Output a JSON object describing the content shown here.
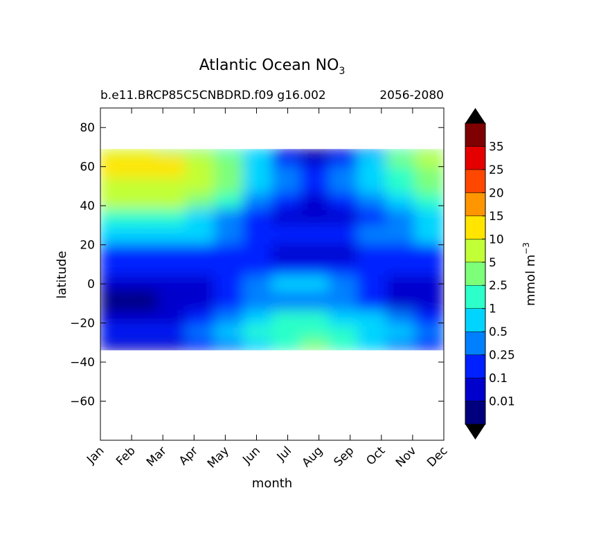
{
  "chart_data": {
    "type": "heatmap",
    "title": "Atlantic Ocean NO",
    "title_subscript": "3",
    "subtitle_left": "b.e11.BRCP85C5CNBDRD.f09 g16.002",
    "subtitle_right": "2056-2080",
    "xlabel": "month",
    "ylabel": "latitude",
    "x_categories": [
      "Jan",
      "Feb",
      "Mar",
      "Apr",
      "May",
      "Jun",
      "Jul",
      "Aug",
      "Sep",
      "Oct",
      "Nov",
      "Dec"
    ],
    "ylim": [
      -80,
      90
    ],
    "y_ticks": [
      80,
      60,
      40,
      20,
      0,
      -20,
      -40,
      -60
    ],
    "y_tick_labels": [
      "80",
      "60",
      "40",
      "20",
      "0",
      "−20",
      "−40",
      "−60"
    ],
    "data_lat_range": [
      -34,
      69
    ],
    "colorbar": {
      "label": "mmol m",
      "label_superscript": "−3",
      "extend": "both",
      "levels": [
        "0.01",
        "0.1",
        "0.25",
        "0.5",
        "1",
        "2.5",
        "5",
        "10",
        "15",
        "20",
        "25",
        "35"
      ],
      "colors": [
        "#00007f",
        "#0000cd",
        "#0020ff",
        "#0080ff",
        "#00d4ff",
        "#2cffc9",
        "#7dff7a",
        "#c1ff36",
        "#ffe500",
        "#ff9600",
        "#ff4700",
        "#e50000",
        "#7f0000"
      ],
      "under_color": "#000000",
      "over_color": "#000000"
    },
    "grid": false,
    "field_description_rows": [
      {
        "lat_from": 69,
        "lat_to": 66,
        "class_by_month": [
          7,
          7,
          6,
          6,
          5,
          4,
          1,
          0,
          1,
          3,
          5,
          6
        ]
      },
      {
        "lat_from": 66,
        "lat_to": 60,
        "class_by_month": [
          8,
          8,
          8,
          7,
          6,
          4,
          2,
          1,
          2,
          4,
          6,
          7
        ]
      },
      {
        "lat_from": 60,
        "lat_to": 54,
        "class_by_month": [
          8,
          8,
          8,
          7,
          6,
          4,
          3,
          2,
          3,
          4,
          5,
          6
        ]
      },
      {
        "lat_from": 54,
        "lat_to": 46,
        "class_by_month": [
          7,
          7,
          7,
          7,
          6,
          4,
          3,
          2,
          3,
          4,
          5,
          6
        ]
      },
      {
        "lat_from": 46,
        "lat_to": 38,
        "class_by_month": [
          7,
          7,
          7,
          6,
          5,
          3,
          2,
          1,
          2,
          3,
          4,
          5
        ]
      },
      {
        "lat_from": 38,
        "lat_to": 30,
        "class_by_month": [
          5,
          5,
          5,
          4,
          3,
          2,
          1,
          1,
          1,
          2,
          3,
          4
        ]
      },
      {
        "lat_from": 30,
        "lat_to": 20,
        "class_by_month": [
          4,
          4,
          4,
          4,
          3,
          2,
          2,
          2,
          2,
          3,
          3,
          4
        ]
      },
      {
        "lat_from": 20,
        "lat_to": 10,
        "class_by_month": [
          2,
          2,
          2,
          2,
          2,
          2,
          1,
          1,
          1,
          2,
          2,
          2
        ]
      },
      {
        "lat_from": 10,
        "lat_to": 4,
        "class_by_month": [
          2,
          2,
          2,
          2,
          2,
          2,
          2,
          2,
          2,
          2,
          2,
          2
        ]
      },
      {
        "lat_from": 4,
        "lat_to": -4,
        "class_by_month": [
          1,
          1,
          1,
          1,
          2,
          3,
          4,
          4,
          3,
          2,
          1,
          1
        ]
      },
      {
        "lat_from": -4,
        "lat_to": -14,
        "class_by_month": [
          0,
          0,
          1,
          1,
          2,
          3,
          3,
          3,
          3,
          2,
          1,
          1
        ]
      },
      {
        "lat_from": -14,
        "lat_to": -22,
        "class_by_month": [
          1,
          1,
          1,
          2,
          3,
          4,
          5,
          5,
          4,
          4,
          3,
          2
        ]
      },
      {
        "lat_from": -22,
        "lat_to": -28,
        "class_by_month": [
          2,
          2,
          2,
          3,
          4,
          5,
          5,
          5,
          5,
          4,
          4,
          3
        ]
      },
      {
        "lat_from": -28,
        "lat_to": -34,
        "class_by_month": [
          1,
          1,
          1,
          2,
          3,
          4,
          5,
          6,
          5,
          4,
          3,
          2
        ]
      }
    ]
  }
}
